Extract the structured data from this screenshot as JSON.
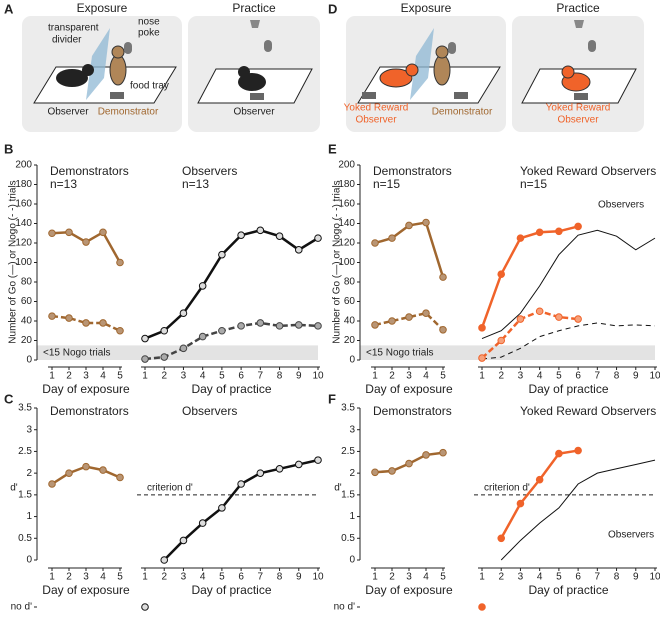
{
  "diagrams": [
    {
      "letter": "A",
      "exposure": {
        "title": "Exposure",
        "divider": [
          "transparent",
          "divider"
        ],
        "poke": [
          "nose",
          "poke"
        ],
        "tray": "food tray",
        "left": "Observer",
        "right": "Demonstrator"
      },
      "practice": {
        "title": "Practice",
        "rat": "Observer"
      }
    },
    {
      "letter": "D",
      "exposure": {
        "title": "Exposure",
        "left": [
          "Yoked Reward",
          "Observer"
        ],
        "right": "Demonstrator"
      },
      "practice": {
        "title": "Practice",
        "rat": [
          "Yoked Reward",
          "Observer"
        ]
      }
    }
  ],
  "chart_data": [
    {
      "type": "line",
      "panel": "B",
      "ylabel": "Number of Go (—) or Nogo (- -) trials",
      "ylim": [
        0,
        200
      ],
      "yticks": [
        0,
        20,
        40,
        60,
        80,
        100,
        120,
        140,
        160,
        180,
        200
      ],
      "band": {
        "range": [
          0,
          15
        ],
        "label": "<15 Nogo trials"
      },
      "subplots": [
        {
          "title": "Demonstrators",
          "subtitle": "n=13",
          "title_color": "#a0672f",
          "xlabel": "Day of exposure",
          "x": [
            1,
            2,
            3,
            4,
            5
          ],
          "xlim": [
            1,
            5
          ],
          "xticks": [
            1,
            2,
            3,
            4,
            5
          ],
          "series": [
            {
              "color": "#a0672f",
              "marker": "#b99574",
              "style": "solid",
              "values": [
                130,
                131,
                121,
                131,
                100
              ]
            },
            {
              "color": "#a0672f",
              "marker": "#b99574",
              "style": "dashed",
              "values": [
                45,
                43,
                38,
                38,
                30
              ]
            }
          ]
        },
        {
          "title": "Observers",
          "subtitle": "n=13",
          "title_color": "#111111",
          "xlabel": "Day of practice",
          "x": [
            1,
            2,
            3,
            4,
            5,
            6,
            7,
            8,
            9,
            10
          ],
          "xlim": [
            1,
            10
          ],
          "xticks": [
            1,
            2,
            3,
            4,
            5,
            6,
            7,
            8,
            9,
            10
          ],
          "series": [
            {
              "color": "#111111",
              "marker": "#dddddd",
              "style": "solid",
              "values": [
                22,
                30,
                48,
                76,
                108,
                128,
                133,
                127,
                113,
                125
              ]
            },
            {
              "color": "#444444",
              "marker": "#aaaaaa",
              "style": "dashed",
              "values": [
                1,
                3,
                12,
                24,
                30,
                35,
                38,
                35,
                36,
                35
              ]
            }
          ]
        }
      ]
    },
    {
      "type": "line",
      "panel": "C",
      "ylabel": "d'",
      "ylim": [
        0,
        3.5
      ],
      "yticks": [
        0,
        0.5,
        1,
        1.5,
        2,
        2.5,
        3,
        3.5
      ],
      "no_dprime_label": "no d'",
      "criterion": {
        "value": 1.5,
        "label": "criterion d'"
      },
      "subplots": [
        {
          "title": "Demonstrators",
          "title_color": "#a0672f",
          "xlabel": "Day of exposure",
          "x": [
            1,
            2,
            3,
            4,
            5
          ],
          "xlim": [
            1,
            5
          ],
          "xticks": [
            1,
            2,
            3,
            4,
            5
          ],
          "series": [
            {
              "color": "#a0672f",
              "marker": "#b99574",
              "style": "solid",
              "values": [
                1.75,
                2.0,
                2.15,
                2.07,
                1.9
              ]
            }
          ]
        },
        {
          "title": "Observers",
          "title_color": "#111111",
          "xlabel": "Day of practice",
          "x": [
            1,
            2,
            3,
            4,
            5,
            6,
            7,
            8,
            9,
            10
          ],
          "xlim": [
            1,
            10
          ],
          "xticks": [
            1,
            2,
            3,
            4,
            5,
            6,
            7,
            8,
            9,
            10
          ],
          "series": [
            {
              "color": "#111111",
              "marker": "#dddddd",
              "style": "solid",
              "no_dprime_x": [
                1
              ],
              "values": [
                null,
                0,
                0.45,
                0.85,
                1.2,
                1.75,
                2.0,
                2.1,
                2.2,
                2.3
              ]
            }
          ]
        }
      ]
    },
    {
      "type": "line",
      "panel": "E",
      "ylabel": "Number of Go (—) or Nogo (- -) trials",
      "ylim": [
        0,
        200
      ],
      "yticks": [
        0,
        20,
        40,
        60,
        80,
        100,
        120,
        140,
        160,
        180,
        200
      ],
      "band": {
        "range": [
          0,
          15
        ],
        "label": "<15 Nogo trials"
      },
      "subplots": [
        {
          "title": "Demonstrators",
          "subtitle": "n=15",
          "title_color": "#a0672f",
          "xlabel": "Day of exposure",
          "x": [
            1,
            2,
            3,
            4,
            5
          ],
          "xlim": [
            1,
            5
          ],
          "xticks": [
            1,
            2,
            3,
            4,
            5
          ],
          "series": [
            {
              "color": "#a0672f",
              "marker": "#b99574",
              "style": "solid",
              "values": [
                120,
                125,
                138,
                141,
                85
              ]
            },
            {
              "color": "#a0672f",
              "marker": "#b99574",
              "style": "dashed",
              "values": [
                36,
                40,
                44,
                48,
                31
              ]
            }
          ]
        },
        {
          "title": "Yoked Reward Observers",
          "subtitle": "n=15",
          "title_color": "#f0632a",
          "xlabel": "Day of practice",
          "x": [
            1,
            2,
            3,
            4,
            5,
            6,
            7,
            8,
            9,
            10
          ],
          "xlim": [
            1,
            10
          ],
          "xticks": [
            1,
            2,
            3,
            4,
            5,
            6,
            7,
            8,
            9,
            10
          ],
          "series": [
            {
              "name": "Observers",
              "color": "#111111",
              "style": "reference",
              "values": [
                22,
                30,
                48,
                76,
                108,
                128,
                133,
                127,
                113,
                125
              ]
            },
            {
              "color": "#111111",
              "style": "reference-dashed",
              "values": [
                1,
                3,
                12,
                24,
                30,
                35,
                38,
                35,
                36,
                35
              ]
            },
            {
              "color": "#f0632a",
              "marker": "#f0632a",
              "style": "solid",
              "values": [
                33,
                88,
                125,
                131,
                132,
                137,
                null,
                null,
                null,
                null
              ]
            },
            {
              "color": "#f0632a",
              "marker": "#f7a07a",
              "style": "dashed",
              "values": [
                2,
                20,
                42,
                50,
                44,
                42,
                null,
                null,
                null,
                null
              ]
            }
          ]
        }
      ]
    },
    {
      "type": "line",
      "panel": "F",
      "ylabel": "d'",
      "ylim": [
        0,
        3.5
      ],
      "yticks": [
        0,
        0.5,
        1,
        1.5,
        2,
        2.5,
        3,
        3.5
      ],
      "no_dprime_label": "no d'",
      "criterion": {
        "value": 1.5,
        "label": "criterion d'"
      },
      "subplots": [
        {
          "title": "Demonstrators",
          "title_color": "#a0672f",
          "xlabel": "Day of exposure",
          "x": [
            1,
            2,
            3,
            4,
            5
          ],
          "xlim": [
            1,
            5
          ],
          "xticks": [
            1,
            2,
            3,
            4,
            5
          ],
          "series": [
            {
              "color": "#a0672f",
              "marker": "#b99574",
              "style": "solid",
              "values": [
                2.02,
                2.05,
                2.22,
                2.42,
                2.47
              ]
            }
          ]
        },
        {
          "title": "Yoked Reward Observers",
          "title_color": "#f0632a",
          "xlabel": "Day of practice",
          "x": [
            1,
            2,
            3,
            4,
            5,
            6,
            7,
            8,
            9,
            10
          ],
          "xlim": [
            1,
            10
          ],
          "xticks": [
            1,
            2,
            3,
            4,
            5,
            6,
            7,
            8,
            9,
            10
          ],
          "series": [
            {
              "name": "Observers",
              "color": "#111111",
              "style": "reference",
              "values": [
                null,
                0,
                0.45,
                0.85,
                1.2,
                1.75,
                2.0,
                2.1,
                2.2,
                2.3
              ]
            },
            {
              "color": "#f0632a",
              "marker": "#f0632a",
              "style": "solid",
              "no_dprime_x": [
                1
              ],
              "values": [
                null,
                0.5,
                1.3,
                1.85,
                2.45,
                2.52,
                null,
                null,
                null,
                null
              ]
            }
          ]
        }
      ]
    }
  ]
}
